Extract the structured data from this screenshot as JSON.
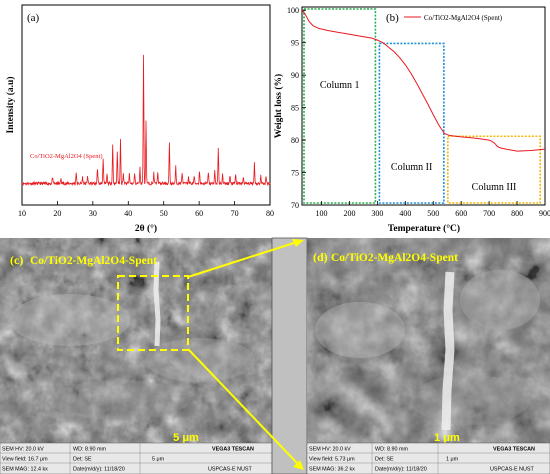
{
  "chart_data": [
    {
      "panel": "(a)",
      "type": "line",
      "xlabel": "2θ (°)",
      "ylabel": "Intensity (a.u)",
      "legend": "Co/TiO2-MgAl2O4 (Spent)",
      "legend_placement": "left-middle",
      "xlim": [
        10,
        80
      ],
      "xticks": [
        10,
        20,
        30,
        40,
        50,
        60,
        70,
        80
      ],
      "yticks_shown": false,
      "color": "#e8191f",
      "baseline": 5,
      "peaks": [
        {
          "x": 18.6,
          "h": 5
        },
        {
          "x": 21.0,
          "h": 4
        },
        {
          "x": 25.3,
          "h": 9
        },
        {
          "x": 27.1,
          "h": 5
        },
        {
          "x": 28.5,
          "h": 6
        },
        {
          "x": 31.3,
          "h": 12
        },
        {
          "x": 32.9,
          "h": 20
        },
        {
          "x": 34.0,
          "h": 7
        },
        {
          "x": 35.6,
          "h": 30
        },
        {
          "x": 36.9,
          "h": 25
        },
        {
          "x": 37.8,
          "h": 34
        },
        {
          "x": 38.6,
          "h": 8
        },
        {
          "x": 40.3,
          "h": 7
        },
        {
          "x": 41.8,
          "h": 8
        },
        {
          "x": 43.3,
          "h": 12
        },
        {
          "x": 44.3,
          "h": 100
        },
        {
          "x": 45.0,
          "h": 48
        },
        {
          "x": 47.2,
          "h": 8
        },
        {
          "x": 48.3,
          "h": 9
        },
        {
          "x": 51.6,
          "h": 31
        },
        {
          "x": 53.4,
          "h": 13
        },
        {
          "x": 55.2,
          "h": 9
        },
        {
          "x": 57.0,
          "h": 6
        },
        {
          "x": 58.6,
          "h": 6
        },
        {
          "x": 60.1,
          "h": 10
        },
        {
          "x": 62.6,
          "h": 9
        },
        {
          "x": 64.4,
          "h": 10
        },
        {
          "x": 65.4,
          "h": 27
        },
        {
          "x": 66.6,
          "h": 7
        },
        {
          "x": 68.7,
          "h": 6
        },
        {
          "x": 70.3,
          "h": 7
        },
        {
          "x": 72.5,
          "h": 5
        },
        {
          "x": 75.6,
          "h": 16
        },
        {
          "x": 77.4,
          "h": 6
        },
        {
          "x": 78.9,
          "h": 5
        }
      ]
    },
    {
      "panel": "(b)",
      "type": "line",
      "xlabel": "Temperature (°C)",
      "ylabel": "Weight loss (%)",
      "legend": "Co/TiO2-MgAl2O4 (Spent)",
      "legend_placement": "top-right",
      "xlim": [
        30,
        900
      ],
      "ylim": [
        70,
        100.5
      ],
      "xticks": [
        100,
        200,
        300,
        400,
        500,
        600,
        700,
        800,
        900
      ],
      "yticks": [
        70,
        75,
        80,
        85,
        90,
        95,
        100
      ],
      "color": "#e8191f",
      "x": [
        30,
        40,
        55,
        70,
        90,
        120,
        160,
        200,
        240,
        280,
        300,
        320,
        340,
        360,
        380,
        400,
        420,
        440,
        460,
        480,
        500,
        520,
        540,
        560,
        600,
        650,
        700,
        710,
        720,
        730,
        740,
        760,
        800,
        850,
        900
      ],
      "y": [
        100,
        99.5,
        98.3,
        97.6,
        97.2,
        96.9,
        96.6,
        96.3,
        96.0,
        95.7,
        95.4,
        95.0,
        94.3,
        93.6,
        92.7,
        91.6,
        90.3,
        88.8,
        87.2,
        85.6,
        83.9,
        82.3,
        81.0,
        80.7,
        80.5,
        80.3,
        80.0,
        79.8,
        79.5,
        79.0,
        78.8,
        78.6,
        78.3,
        78.4,
        78.6
      ],
      "regions": [
        {
          "label": "Column 1",
          "x": [
            30,
            300
          ],
          "y": [
            70,
            100.5
          ],
          "color": "#22b14c"
        },
        {
          "label": "Column II",
          "x": [
            300,
            545
          ],
          "y": [
            70,
            95.2
          ],
          "color": "#1f8fd8"
        },
        {
          "label": "Column III",
          "x": [
            545,
            890
          ],
          "y": [
            70,
            80.9
          ],
          "color": "#f5b800"
        }
      ]
    }
  ],
  "sem": {
    "c": {
      "panel": "(c)",
      "title": "Co/TiO2-MgAl2O4-Spent",
      "scale": "5 μm",
      "meta": {
        "hv": "SEM HV: 20.0 kV",
        "wd": "WD: 8.90 mm",
        "field": "View field: 16.7 μm",
        "det": "Det: SE",
        "scale_small": "5 μm",
        "mag": "SEM MAG: 12.4 kx",
        "date": "Date(m/d/y): 11/18/20",
        "vega": "VEGA3 TESCAN",
        "org": "USPCAS-E NUST"
      }
    },
    "d": {
      "panel": "(d)",
      "title": "Co/TiO2-MgAl2O4-Spent",
      "scale": "1 μm",
      "meta": {
        "hv": "SEM HV: 20.0 kV",
        "wd": "WD: 8.90 mm",
        "field": "View field: 5.73 μm",
        "det": "Det: SE",
        "scale_small": "1 μm",
        "mag": "SEM MAG: 36.2 kx",
        "date": "Date(m/d/y): 11/18/20",
        "vega": "VEGA3 TESCAN",
        "org": "USPCAS-E NUST"
      }
    },
    "colors": {
      "highlight": "#ffff00",
      "divider": "#c0c0c0"
    }
  }
}
